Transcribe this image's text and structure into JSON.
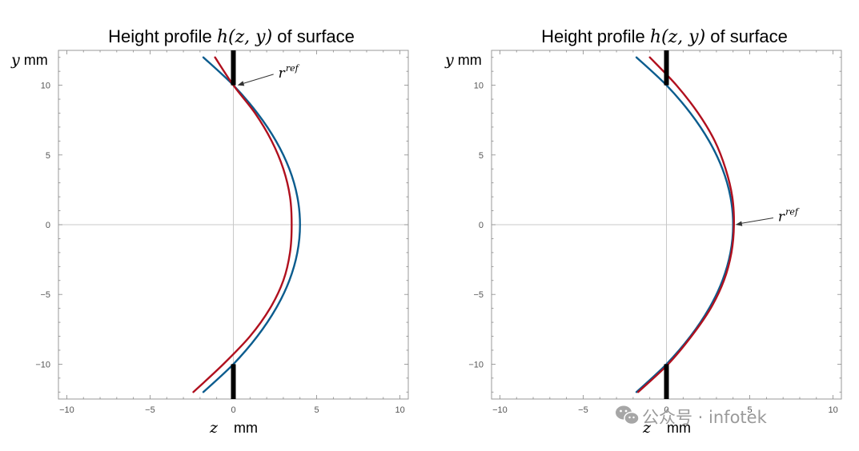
{
  "chart_data": [
    {
      "type": "line",
      "title": {
        "prefix": "Height profile ",
        "math": "h(z, y)",
        "suffix": " of surface"
      },
      "xlabel": "mm",
      "xlabel_math": "z",
      "ylabel": "mm",
      "ylabel_math": "y",
      "xlim": [
        -10.5,
        10.5
      ],
      "ylim": [
        -12.5,
        12.5
      ],
      "x_ticks": [
        -10,
        -5,
        0,
        5,
        10
      ],
      "y_ticks": [
        -10,
        -5,
        0,
        5,
        10
      ],
      "grid": false,
      "series": [
        {
          "color": "#0b5c8e",
          "z": [
            -1.8,
            0.0,
            1.44,
            2.56,
            3.36,
            3.84,
            4.0,
            3.84,
            3.36,
            2.56,
            1.44,
            0.0,
            -1.8
          ],
          "y": [
            12,
            10,
            8,
            6,
            4,
            2,
            0,
            -2,
            -4,
            -6,
            -8,
            -10,
            -12
          ]
        },
        {
          "color": "#b0101e",
          "z": [
            -1.1,
            0.0,
            1.3,
            2.3,
            3.0,
            3.4,
            3.5,
            3.4,
            3.0,
            2.2,
            1.0,
            -0.6,
            -2.4
          ],
          "y": [
            12,
            10,
            8,
            6,
            4,
            2,
            0,
            -2,
            -4,
            -6,
            -8,
            -10,
            -12
          ]
        }
      ],
      "aperture_bars": [
        {
          "z": 0,
          "y": [
            10,
            12.5
          ]
        },
        {
          "z": 0,
          "y": [
            -12.5,
            -10
          ]
        }
      ],
      "annotation": {
        "text": "r",
        "sup": "ref",
        "point": [
          0.2,
          10.0
        ],
        "text_pos": [
          2.7,
          10.9
        ]
      }
    },
    {
      "type": "line",
      "title": {
        "prefix": "Height profile ",
        "math": "h(z, y)",
        "suffix": " of surface"
      },
      "xlabel": "mm",
      "xlabel_math": "z",
      "ylabel": "mm",
      "ylabel_math": "y",
      "xlim": [
        -10.5,
        10.5
      ],
      "ylim": [
        -12.5,
        12.5
      ],
      "x_ticks": [
        -10,
        -5,
        0,
        5,
        10
      ],
      "y_ticks": [
        -10,
        -5,
        0,
        5,
        10
      ],
      "grid": false,
      "series": [
        {
          "color": "#0b5c8e",
          "z": [
            -1.8,
            0.0,
            1.44,
            2.56,
            3.36,
            3.84,
            4.0,
            3.84,
            3.36,
            2.56,
            1.44,
            0.0,
            -1.8
          ],
          "y": [
            12,
            10,
            8,
            6,
            4,
            2,
            0,
            -2,
            -4,
            -6,
            -8,
            -10,
            -12
          ]
        },
        {
          "color": "#b0101e",
          "z": [
            -1.0,
            0.6,
            1.9,
            2.9,
            3.55,
            3.95,
            4.05,
            3.9,
            3.45,
            2.65,
            1.5,
            0.1,
            -1.7
          ],
          "y": [
            12,
            10,
            8,
            6,
            4,
            2,
            0,
            -2,
            -4,
            -6,
            -8,
            -10,
            -12
          ]
        }
      ],
      "aperture_bars": [
        {
          "z": 0,
          "y": [
            10,
            12.5
          ]
        },
        {
          "z": 0,
          "y": [
            -12.5,
            -10
          ]
        }
      ],
      "annotation": {
        "text": "r",
        "sup": "ref",
        "point": [
          4.1,
          0.0
        ],
        "text_pos": [
          6.7,
          0.6
        ]
      }
    }
  ],
  "watermark": {
    "icon": "wechat-icon",
    "text": "公众号 · infotek"
  }
}
